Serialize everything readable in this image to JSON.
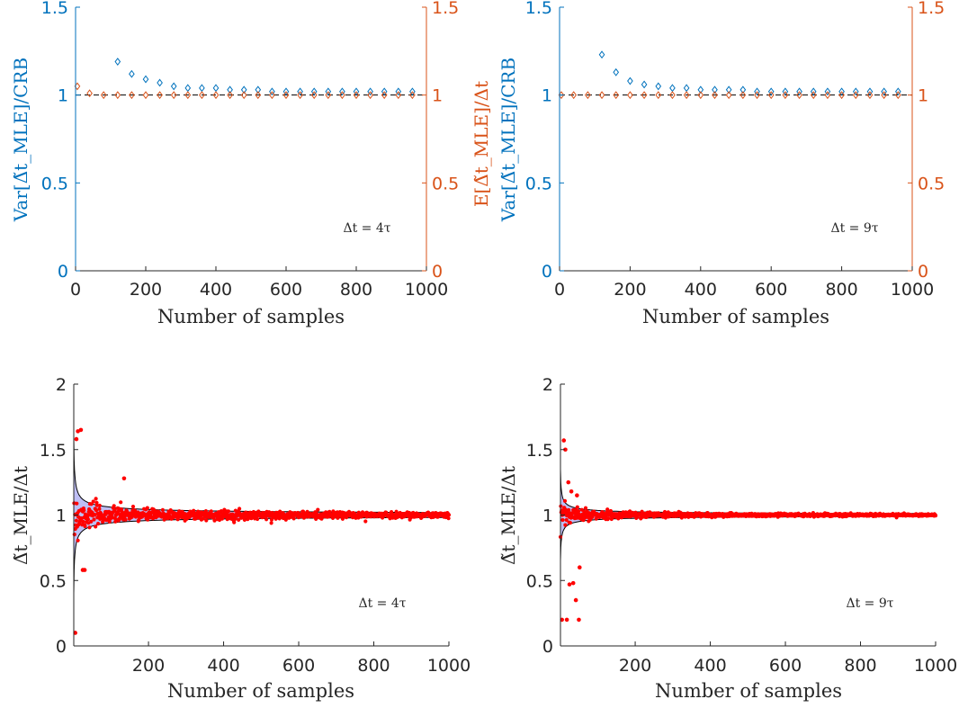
{
  "colors": {
    "blue": "#0072BD",
    "orange": "#D95319",
    "red": "#FF0000",
    "band": "#B3B3F2",
    "axis": "#262626"
  },
  "chart_data": [
    {
      "type": "scatter",
      "xlabel": "Number of samples",
      "ylabel_left": "Var[Δ̃t_MLE]/CRB",
      "ylabel_right": "E[Δ̃t_MLE]/Δt",
      "annotation": "Δt = 4τ",
      "xlim": [
        0,
        1000
      ],
      "ylim_left": [
        0,
        1.5
      ],
      "ylim_right": [
        0,
        1.5
      ],
      "x_ticks": [
        "0",
        "200",
        "400",
        "600",
        "800",
        "1000"
      ],
      "y_ticks_left": [
        "0",
        "0.5",
        "1",
        "1.5"
      ],
      "y_ticks_right": [
        "0",
        "0.5",
        "1",
        "1.5"
      ],
      "reference_line": 1,
      "series": [
        {
          "axis": "left",
          "marker": "diamond",
          "x": [
            120,
            160,
            200,
            240,
            280,
            320,
            360,
            400,
            440,
            480,
            520,
            560,
            600,
            640,
            680,
            720,
            760,
            800,
            840,
            880,
            920,
            960
          ],
          "y": [
            1.19,
            1.12,
            1.09,
            1.07,
            1.05,
            1.04,
            1.04,
            1.04,
            1.03,
            1.03,
            1.03,
            1.02,
            1.02,
            1.02,
            1.02,
            1.02,
            1.02,
            1.02,
            1.02,
            1.02,
            1.02,
            1.02
          ]
        },
        {
          "axis": "right",
          "marker": "diamond",
          "x": [
            5,
            40,
            80,
            120,
            160,
            200,
            240,
            280,
            320,
            360,
            400,
            440,
            480,
            520,
            560,
            600,
            640,
            680,
            720,
            760,
            800,
            840,
            880,
            920,
            960
          ],
          "y": [
            1.05,
            1.01,
            1.0,
            1.0,
            1.0,
            1.0,
            1.0,
            1.0,
            1.0,
            1.0,
            1.0,
            1.0,
            1.0,
            1.0,
            1.0,
            1.0,
            1.0,
            1.0,
            1.0,
            1.0,
            1.0,
            1.0,
            1.0,
            1.0,
            1.0
          ]
        }
      ]
    },
    {
      "type": "scatter",
      "xlabel": "Number of samples",
      "ylabel_left": "Var[Δ̃t_MLE]/CRB",
      "ylabel_right": "",
      "annotation": "Δt = 9τ",
      "xlim": [
        0,
        1000
      ],
      "ylim_left": [
        0,
        1.5
      ],
      "ylim_right": [
        0,
        1.5
      ],
      "x_ticks": [
        "0",
        "200",
        "400",
        "600",
        "800",
        "1000"
      ],
      "y_ticks_left": [
        "0",
        "0.5",
        "1",
        "1.5"
      ],
      "y_ticks_right": [
        "0",
        "0.5",
        "1",
        "1.5"
      ],
      "reference_line": 1,
      "series": [
        {
          "axis": "left",
          "marker": "diamond",
          "x": [
            120,
            160,
            200,
            240,
            280,
            320,
            360,
            400,
            440,
            480,
            520,
            560,
            600,
            640,
            680,
            720,
            760,
            800,
            840,
            880,
            920,
            960
          ],
          "y": [
            1.23,
            1.13,
            1.08,
            1.06,
            1.05,
            1.04,
            1.04,
            1.03,
            1.03,
            1.03,
            1.03,
            1.02,
            1.02,
            1.02,
            1.02,
            1.02,
            1.02,
            1.02,
            1.02,
            1.02,
            1.02,
            1.02
          ]
        },
        {
          "axis": "right",
          "marker": "diamond",
          "x": [
            5,
            40,
            80,
            120,
            160,
            200,
            240,
            280,
            320,
            360,
            400,
            440,
            480,
            520,
            560,
            600,
            640,
            680,
            720,
            760,
            800,
            840,
            880,
            920,
            960
          ],
          "y": [
            1.0,
            1.0,
            1.0,
            1.0,
            1.0,
            1.0,
            1.0,
            1.0,
            1.0,
            1.0,
            1.0,
            1.0,
            1.0,
            1.0,
            1.0,
            1.0,
            1.0,
            1.0,
            1.0,
            1.0,
            1.0,
            1.0,
            1.0,
            1.0,
            1.0
          ]
        }
      ]
    },
    {
      "type": "scatter",
      "xlabel": "Number of samples",
      "ylabel": "Δ̃t_MLE/Δt",
      "annotation": "Δt = 4τ",
      "xlim": [
        1,
        1000
      ],
      "ylim": [
        0,
        2
      ],
      "x_ticks": [
        "200",
        "400",
        "600",
        "800",
        "1000"
      ],
      "y_ticks": [
        "0",
        "0.5",
        "1",
        "1.5",
        "2"
      ],
      "band_coefficient": 0.6,
      "outliers": [
        {
          "x": 5,
          "y": 0.1
        },
        {
          "x": 8,
          "y": 1.58
        },
        {
          "x": 12,
          "y": 1.64
        },
        {
          "x": 20,
          "y": 1.65
        },
        {
          "x": 25,
          "y": 0.58
        },
        {
          "x": 30,
          "y": 0.58
        },
        {
          "x": 135,
          "y": 1.28
        }
      ],
      "scatter_spread": 0.55,
      "seed": 7
    },
    {
      "type": "scatter",
      "xlabel": "Number of samples",
      "ylabel": "Δ̃t_MLE/Δt",
      "annotation": "Δt = 9τ",
      "xlim": [
        1,
        1000
      ],
      "ylim": [
        0,
        2
      ],
      "x_ticks": [
        "200",
        "400",
        "600",
        "800",
        "1000"
      ],
      "y_ticks": [
        "0",
        "0.5",
        "1",
        "1.5",
        "2"
      ],
      "band_coefficient": 0.35,
      "outliers": [
        {
          "x": 5,
          "y": 0.2
        },
        {
          "x": 10,
          "y": 1.57
        },
        {
          "x": 14,
          "y": 1.5
        },
        {
          "x": 18,
          "y": 0.2
        },
        {
          "x": 22,
          "y": 1.25
        },
        {
          "x": 25,
          "y": 0.47
        },
        {
          "x": 30,
          "y": 1.18
        },
        {
          "x": 35,
          "y": 0.48
        },
        {
          "x": 42,
          "y": 0.35
        },
        {
          "x": 50,
          "y": 0.2
        },
        {
          "x": 52,
          "y": 0.6
        },
        {
          "x": 45,
          "y": 1.15
        }
      ],
      "scatter_spread": 0.45,
      "seed": 13
    }
  ]
}
